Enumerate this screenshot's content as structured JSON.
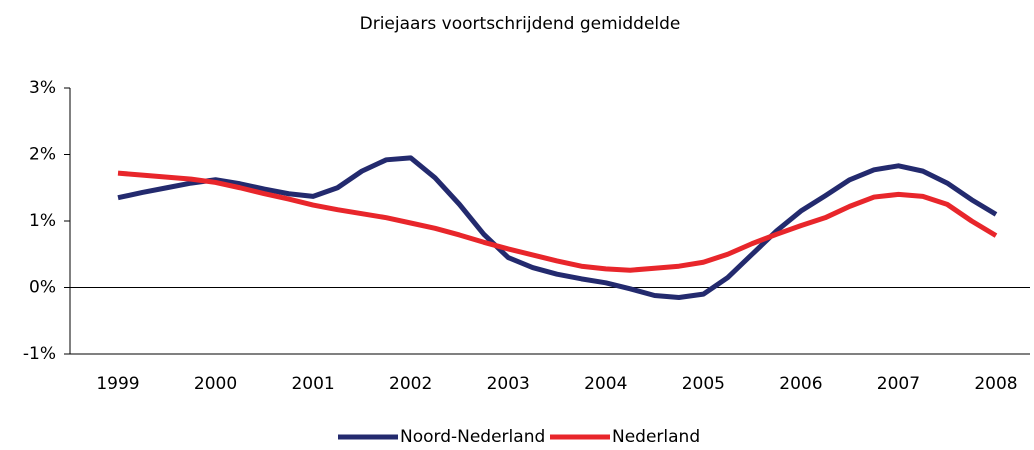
{
  "chart_data": {
    "type": "line",
    "title": "Driejaars voortschrijdend gemiddelde",
    "x": [
      1999,
      1999.25,
      1999.5,
      1999.75,
      2000,
      2000.25,
      2000.5,
      2000.75,
      2001,
      2001.25,
      2001.5,
      2001.75,
      2002,
      2002.25,
      2002.5,
      2002.75,
      2003,
      2003.25,
      2003.5,
      2003.75,
      2004,
      2004.25,
      2004.5,
      2004.75,
      2005,
      2005.25,
      2005.5,
      2005.75,
      2006,
      2006.25,
      2006.5,
      2006.75,
      2007,
      2007.25,
      2007.5,
      2007.75,
      2008
    ],
    "series": [
      {
        "name": "Noord-Nederland",
        "color": "#232a6e",
        "values": [
          1.35,
          1.43,
          1.5,
          1.57,
          1.62,
          1.56,
          1.48,
          1.41,
          1.37,
          1.5,
          1.75,
          1.92,
          1.95,
          1.65,
          1.25,
          0.8,
          0.45,
          0.3,
          0.2,
          0.13,
          0.07,
          -0.02,
          -0.12,
          -0.15,
          -0.1,
          0.15,
          0.5,
          0.85,
          1.15,
          1.38,
          1.62,
          1.77,
          1.83,
          1.75,
          1.57,
          1.32,
          1.1
        ]
      },
      {
        "name": "Nederland",
        "color": "#e8262b",
        "values": [
          1.72,
          1.69,
          1.66,
          1.63,
          1.58,
          1.5,
          1.41,
          1.33,
          1.24,
          1.17,
          1.11,
          1.05,
          0.97,
          0.89,
          0.79,
          0.68,
          0.58,
          0.49,
          0.4,
          0.32,
          0.28,
          0.26,
          0.29,
          0.32,
          0.38,
          0.5,
          0.66,
          0.8,
          0.93,
          1.05,
          1.22,
          1.36,
          1.4,
          1.37,
          1.25,
          1.0,
          0.78
        ]
      }
    ],
    "xlim": [
      1999,
      2008
    ],
    "xticks": [
      1999,
      2000,
      2001,
      2002,
      2003,
      2004,
      2005,
      2006,
      2007,
      2008
    ],
    "ylim": [
      -1,
      3
    ],
    "yticks": [
      {
        "value": -1,
        "label": "-1%"
      },
      {
        "value": 0,
        "label": "0%"
      },
      {
        "value": 1,
        "label": "1%"
      },
      {
        "value": 2,
        "label": "2%"
      },
      {
        "value": 3,
        "label": "3%"
      }
    ],
    "legend": "bottom"
  }
}
